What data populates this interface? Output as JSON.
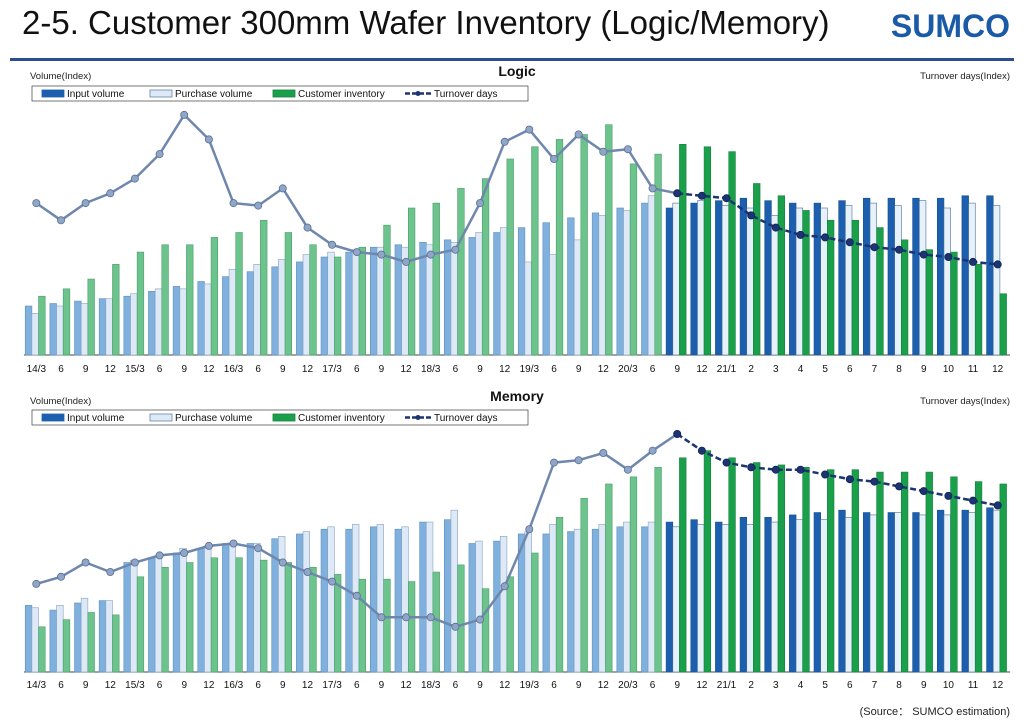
{
  "header": {
    "title_num": "2-5.",
    "title_text": "Customer 300mm Wafer Inventory (Logic/Memory)",
    "logo_text": "SUMCO"
  },
  "source": "(Source： SUMCO estimation)",
  "colors": {
    "input_past": "#7fb0de",
    "input_forecast": "#1c5faf",
    "purchase_past": "#dde9f6",
    "purchase_forecast": "#e6f1fa",
    "inventory_past": "#6cc48c",
    "inventory_forecast": "#1aa04a",
    "turnover_past": "#6f87ad",
    "turnover_forecast": "#1c3472",
    "marker": "#8fa6c8"
  },
  "chart_data": [
    {
      "type": "bar",
      "title": "Logic",
      "ylabel_left": "Volume(Index)",
      "ylabel_right": "Turnover days(Index)",
      "legend": [
        "Input volume",
        "Purchase volume",
        "Customer inventory",
        "Turnover days"
      ],
      "legend_position": "top-left",
      "grid": false,
      "forecast_start_index": 26,
      "categories": [
        "14/3",
        "6",
        "9",
        "12",
        "15/3",
        "6",
        "9",
        "12",
        "16/3",
        "6",
        "9",
        "12",
        "17/3",
        "6",
        "9",
        "12",
        "18/3",
        "6",
        "9",
        "12",
        "19/3",
        "6",
        "9",
        "12",
        "20/3",
        "6",
        "9",
        "12",
        "21/1",
        "2",
        "3",
        "4",
        "5",
        "6",
        "7",
        "8",
        "9",
        "10",
        "11",
        "12"
      ],
      "ylim": [
        0,
        100
      ],
      "y2lim": [
        0,
        100
      ],
      "series": [
        {
          "name": "Input volume",
          "values": [
            20,
            21,
            22,
            23,
            24,
            26,
            28,
            30,
            32,
            34,
            36,
            38,
            40,
            42,
            44,
            45,
            46,
            47,
            48,
            50,
            52,
            54,
            56,
            58,
            60,
            62,
            60,
            62,
            63,
            64,
            63,
            62,
            62,
            63,
            64,
            64,
            64,
            64,
            65,
            65
          ]
        },
        {
          "name": "Purchase volume",
          "values": [
            17,
            20,
            21,
            23,
            25,
            27,
            27,
            29,
            35,
            37,
            39,
            41,
            42,
            43,
            44,
            44,
            45,
            46,
            50,
            52,
            38,
            41,
            47,
            57,
            59,
            65,
            62,
            63,
            61,
            60,
            57,
            60,
            60,
            61,
            62,
            61,
            63,
            60,
            62,
            61
          ]
        },
        {
          "name": "Customer inventory",
          "values": [
            24,
            27,
            31,
            37,
            42,
            45,
            45,
            48,
            50,
            55,
            50,
            45,
            40,
            44,
            53,
            60,
            62,
            68,
            72,
            80,
            85,
            88,
            90,
            94,
            78,
            82,
            86,
            85,
            83,
            70,
            65,
            59,
            55,
            55,
            52,
            47,
            43,
            42,
            37,
            25
          ]
        },
        {
          "name": "Turnover days",
          "type": "line",
          "values": [
            62,
            55,
            62,
            66,
            72,
            82,
            98,
            88,
            62,
            61,
            68,
            52,
            45,
            42,
            41,
            38,
            41,
            43,
            62,
            87,
            92,
            80,
            90,
            83,
            84,
            68,
            66,
            65,
            64,
            57,
            52,
            49,
            48,
            46,
            44,
            43,
            41,
            40,
            38,
            37
          ]
        }
      ]
    },
    {
      "type": "bar",
      "title": "Memory",
      "ylabel_left": "Volume(Index)",
      "ylabel_right": "Turnover days(Index)",
      "legend": [
        "Input volume",
        "Purchase volume",
        "Customer inventory",
        "Turnover days"
      ],
      "legend_position": "top-left",
      "grid": false,
      "forecast_start_index": 26,
      "categories": [
        "14/3",
        "6",
        "9",
        "12",
        "15/3",
        "6",
        "9",
        "12",
        "16/3",
        "6",
        "9",
        "12",
        "17/3",
        "6",
        "9",
        "12",
        "18/3",
        "6",
        "9",
        "12",
        "19/3",
        "6",
        "9",
        "12",
        "20/3",
        "6",
        "9",
        "12",
        "21/1",
        "2",
        "3",
        "4",
        "5",
        "6",
        "7",
        "8",
        "9",
        "10",
        "11",
        "12"
      ],
      "ylim": [
        0,
        100
      ],
      "y2lim": [
        0,
        100
      ],
      "series": [
        {
          "name": "Input volume",
          "values": [
            28,
            26,
            29,
            30,
            46,
            48,
            50,
            52,
            54,
            54,
            56,
            58,
            60,
            60,
            61,
            60,
            63,
            64,
            54,
            55,
            58,
            58,
            59,
            60,
            61,
            61,
            63,
            64,
            63,
            65,
            65,
            66,
            67,
            68,
            67,
            67,
            67,
            68,
            68,
            69
          ]
        },
        {
          "name": "Purchase volume",
          "values": [
            27,
            28,
            31,
            30,
            47,
            49,
            52,
            53,
            54,
            54,
            57,
            59,
            61,
            62,
            62,
            61,
            63,
            68,
            55,
            57,
            59,
            62,
            60,
            62,
            63,
            63,
            61,
            62,
            62,
            62,
            63,
            64,
            64,
            65,
            66,
            67,
            66,
            66,
            67,
            68
          ]
        },
        {
          "name": "Customer inventory",
          "values": [
            19,
            22,
            25,
            24,
            40,
            44,
            46,
            48,
            48,
            47,
            46,
            44,
            41,
            39,
            39,
            38,
            42,
            45,
            35,
            40,
            50,
            65,
            73,
            79,
            82,
            86,
            90,
            93,
            90,
            88,
            87,
            86,
            85,
            85,
            84,
            84,
            84,
            82,
            80,
            79
          ]
        },
        {
          "name": "Turnover days",
          "type": "line",
          "values": [
            37,
            40,
            46,
            42,
            46,
            49,
            50,
            53,
            54,
            52,
            46,
            42,
            38,
            32,
            23,
            23,
            23,
            19,
            22,
            36,
            60,
            88,
            89,
            92,
            85,
            93,
            100,
            93,
            88,
            86,
            85,
            85,
            83,
            81,
            80,
            78,
            76,
            74,
            72,
            70
          ]
        }
      ]
    }
  ]
}
